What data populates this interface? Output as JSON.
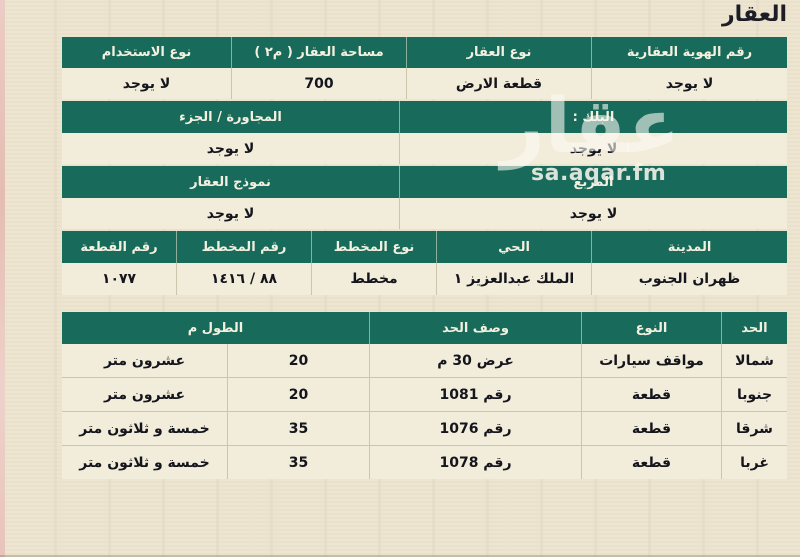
{
  "page": {
    "title": "العقار"
  },
  "watermark": {
    "logo_text": "عقار",
    "site": "sa.aqar.fm"
  },
  "colors": {
    "header_green": "#186a5b",
    "page_bg": "#ece4ce",
    "row_bg": "#f2ecda",
    "edge_pink": "#e5bcb2"
  },
  "property_table": {
    "headers": [
      "رقم الهوية العقارية",
      "نوع العقار",
      "مساحة العقار ( م٢ )",
      "نوع الاستخدام"
    ],
    "values": [
      "لا يوجد",
      "قطعة الارض",
      "700",
      "لا يوجد"
    ]
  },
  "block_table": {
    "headers": [
      "البلك :",
      "المجاورة / الجزء"
    ],
    "values": [
      "لا يوجد",
      "لا يوجد"
    ]
  },
  "square_table": {
    "headers": [
      "المربع",
      "نموذج العقار"
    ],
    "values": [
      "لا يوجد",
      "لا يوجد"
    ]
  },
  "plan_table": {
    "headers": [
      "المدينة",
      "الحي",
      "نوع المخطط",
      "رقم المخطط",
      "رقم القطعة"
    ],
    "values": [
      "ظهران الجنوب",
      "الملك عبدالعزيز ١",
      "مخطط",
      "٨٨ / ١٤١٦",
      "١٠٧٧"
    ]
  },
  "boundaries_table": {
    "headers": [
      "الحد",
      "النوع",
      "وصف الحد",
      "الطول م"
    ],
    "rows": [
      {
        "side": "شمالا",
        "type": "مواقف سيارات",
        "desc": "عرض 30 م",
        "length_num": "20",
        "length_text": "عشرون متر"
      },
      {
        "side": "جنوبا",
        "type": "قطعة",
        "desc": "رقم 1081",
        "length_num": "20",
        "length_text": "عشرون متر"
      },
      {
        "side": "شرقا",
        "type": "قطعة",
        "desc": "رقم 1076",
        "length_num": "35",
        "length_text": "خمسة و ثلاثون متر"
      },
      {
        "side": "غربا",
        "type": "قطعة",
        "desc": "رقم 1078",
        "length_num": "35",
        "length_text": "خمسة و ثلاثون متر"
      }
    ]
  }
}
